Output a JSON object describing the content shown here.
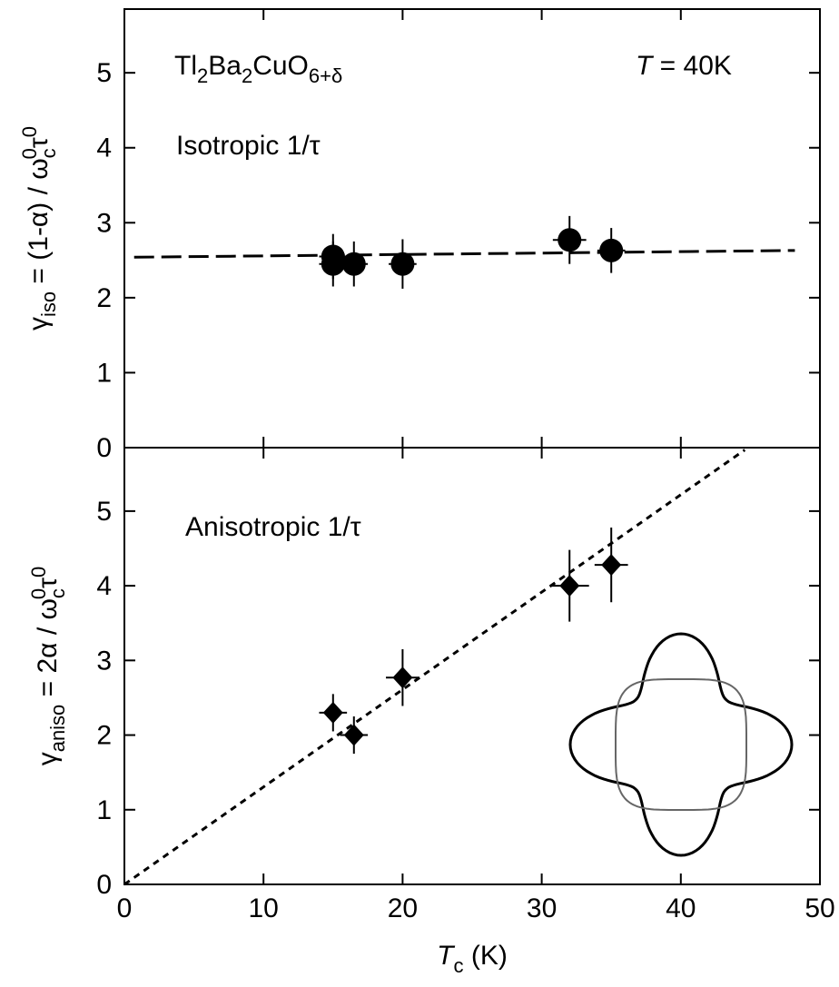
{
  "chart_data": [
    {
      "type": "scatter",
      "title_parts": [
        "Tl",
        "2",
        "Ba",
        "2",
        "CuO",
        "6+δ"
      ],
      "condition_parts": [
        "T",
        " = 40K"
      ],
      "annotation": "Isotropic 1/τ",
      "ylabel_parts": [
        "γ",
        "iso",
        " = (1-α) / ω",
        "c",
        "0",
        "τ",
        "0"
      ],
      "xlim": [
        0,
        50
      ],
      "xticks": [
        0,
        10,
        20,
        30,
        40,
        50
      ],
      "ylim": [
        0,
        5.85
      ],
      "yticks": [
        0,
        1,
        2,
        3,
        4,
        5
      ],
      "series": [
        {
          "kind": "points",
          "marker": "circle",
          "color": "#000000",
          "x": [
            15,
            15,
            16.5,
            20,
            32,
            35
          ],
          "values": [
            2.55,
            2.45,
            2.45,
            2.45,
            2.77,
            2.63
          ],
          "x_err": [
            1.0,
            1.0,
            1.0,
            1.0,
            1.2,
            1.0
          ],
          "y_err": [
            0.3,
            0.3,
            0.3,
            0.33,
            0.32,
            0.3
          ]
        },
        {
          "kind": "line",
          "style": "dashed",
          "color": "#000000",
          "x": [
            0.7,
            48.2
          ],
          "values": [
            2.54,
            2.63
          ]
        }
      ]
    },
    {
      "type": "scatter",
      "annotation": "Anisotropic 1/τ",
      "ylabel_parts": [
        "γ",
        "aniso",
        " = 2α / ω",
        "c",
        "0",
        "τ",
        "0"
      ],
      "xlabel_parts": [
        "T",
        "c",
        " (K)"
      ],
      "xlim": [
        0,
        50
      ],
      "xticks": [
        0,
        10,
        20,
        30,
        40,
        50
      ],
      "ylim": [
        0,
        5.85
      ],
      "yticks": [
        0,
        1,
        2,
        3,
        4,
        5
      ],
      "series": [
        {
          "kind": "points",
          "marker": "diamond",
          "color": "#000000",
          "x": [
            15,
            16.5,
            20,
            32,
            35
          ],
          "values": [
            2.3,
            2.0,
            2.77,
            4.0,
            4.28
          ],
          "x_err": [
            1.0,
            1.0,
            1.2,
            1.4,
            1.2
          ],
          "y_err": [
            0.25,
            0.25,
            0.38,
            0.48,
            0.5
          ]
        },
        {
          "kind": "line",
          "style": "dotted",
          "color": "#000000",
          "x": [
            0,
            44.6
          ],
          "values": [
            0,
            5.82
          ]
        }
      ]
    }
  ]
}
